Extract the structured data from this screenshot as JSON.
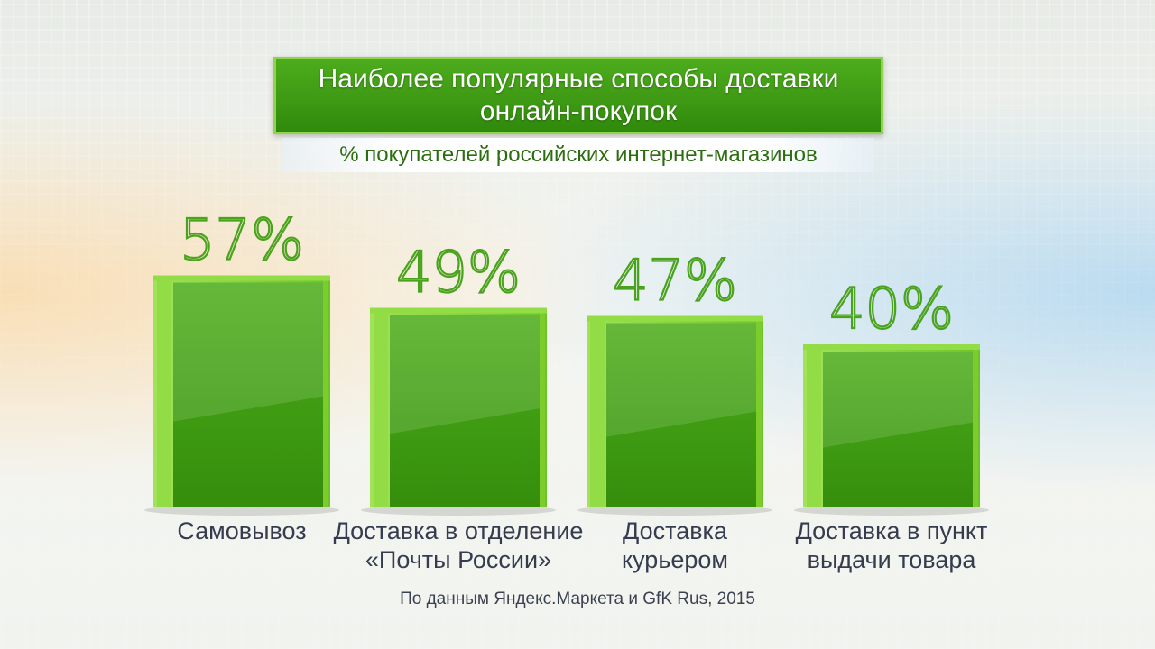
{
  "title": "Наиболее популярные способы доставки онлайн-покупок",
  "subtitle": "% покупателей российских интернет-магазинов",
  "source": "По данным Яндекс.Маркета и GfK Rus, 2015",
  "colors": {
    "bar_face": "#3d9a12",
    "bar_top": "#7ccc2c",
    "bar_edge": "#92dc46",
    "value_label": "#4aa31c",
    "category_label": "#353c4e",
    "title_bg": "#42a016"
  },
  "chart_data": {
    "type": "bar",
    "categories": [
      [
        "Самовывоз"
      ],
      [
        "Доставка в отделение",
        "«Почты России»"
      ],
      [
        "Доставка",
        "курьером"
      ],
      [
        "Доставка в пункт",
        "выдачи товара"
      ]
    ],
    "values": [
      57,
      49,
      47,
      40
    ],
    "value_labels": [
      "57%",
      "49%",
      "47%",
      "40%"
    ],
    "title": "Наиболее популярные способы доставки онлайн-покупок",
    "subtitle": "% покупателей российских интернет-магазинов",
    "ylim": [
      0,
      100
    ],
    "grid": false,
    "legend": "none"
  }
}
